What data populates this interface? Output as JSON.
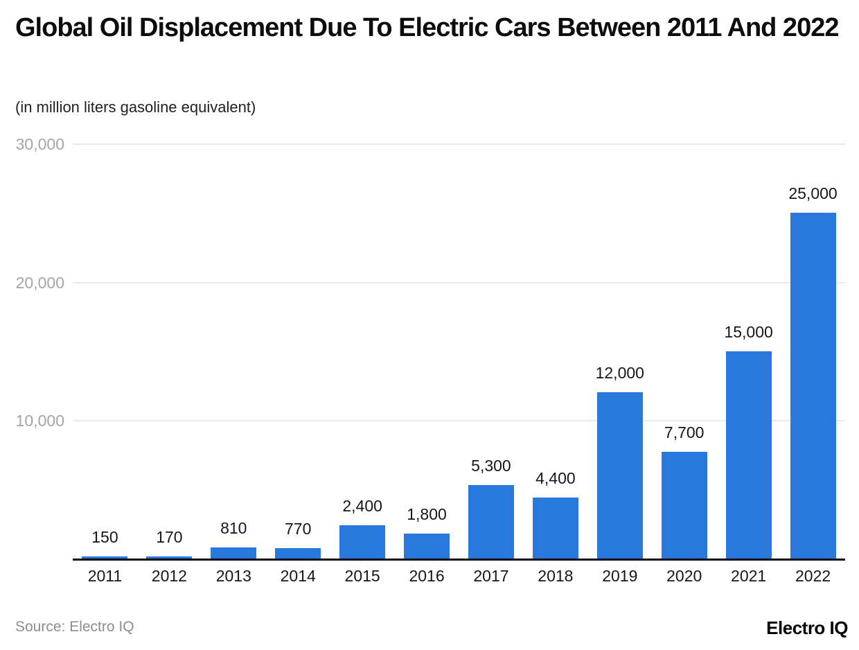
{
  "chart_data": {
    "type": "bar",
    "title": "Global Oil Displacement Due To Electric Cars Between 2011 And 2022",
    "subtitle": "(in million liters gasoline equivalent)",
    "categories": [
      "2011",
      "2012",
      "2013",
      "2014",
      "2015",
      "2016",
      "2017",
      "2018",
      "2019",
      "2020",
      "2021",
      "2022"
    ],
    "values": [
      150,
      170,
      810,
      770,
      2400,
      1800,
      5300,
      4400,
      12000,
      7700,
      15000,
      25000
    ],
    "value_labels": [
      "150",
      "170",
      "810",
      "770",
      "2,400",
      "1,800",
      "5,300",
      "4,400",
      "12,000",
      "7,700",
      "15,000",
      "25,000"
    ],
    "xlabel": "",
    "ylabel": "",
    "ylim": [
      0,
      30000
    ],
    "y_ticks": [
      {
        "value": 10000,
        "label": "10,000"
      },
      {
        "value": 20000,
        "label": "20,000"
      },
      {
        "value": 30000,
        "label": "30,000"
      }
    ],
    "grid": "horizontal-light",
    "legend": "none",
    "bar_color": "#2878DE",
    "axis_color": "#0a0a0a",
    "gridline_color": "#e9e9e9",
    "tick_label_color": "#a5a5a5",
    "data_label_color": "#161616"
  },
  "footer": {
    "source": "Source: Electro IQ",
    "logo": "Electro IQ"
  }
}
